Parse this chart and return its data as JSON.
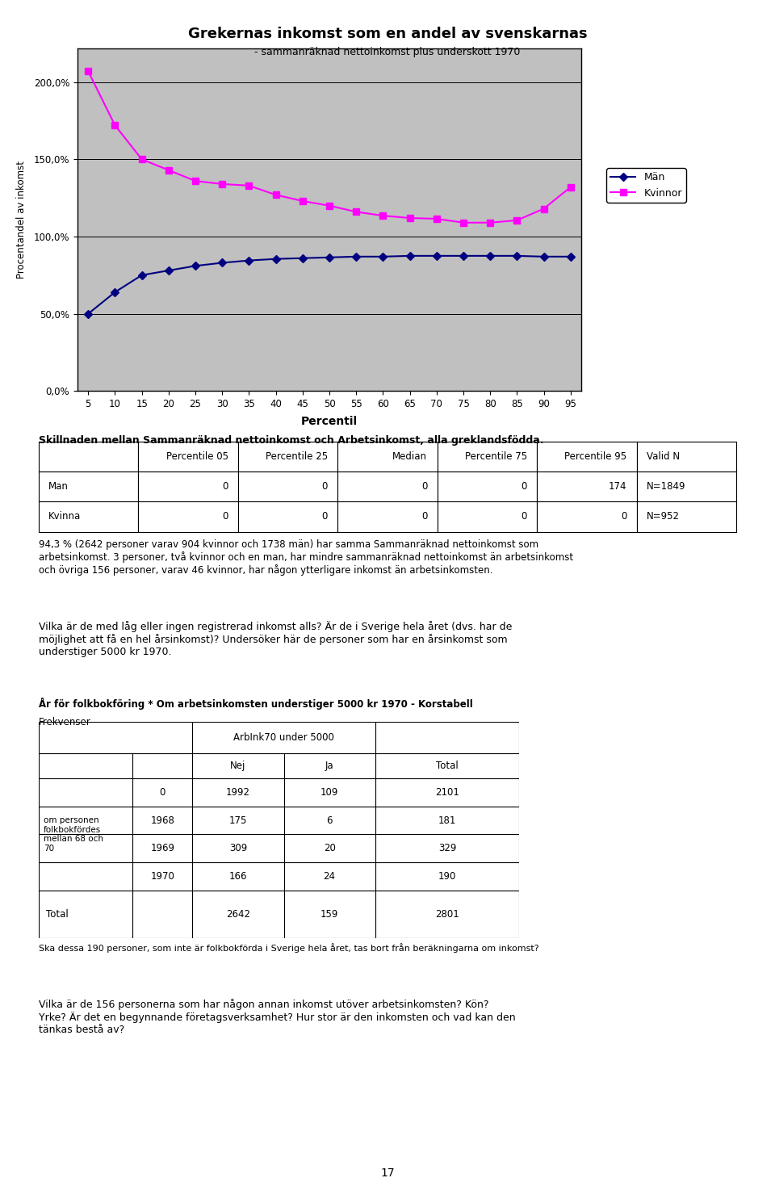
{
  "title": "Grekernas inkomst som en andel av svenskarnas",
  "subtitle": "- sammanräknad nettoinkomst plus underskott 1970",
  "xlabel": "Percentil",
  "ylabel": "Procentandel av inkomst",
  "percentiles": [
    5,
    10,
    15,
    20,
    25,
    30,
    35,
    40,
    45,
    50,
    55,
    60,
    65,
    70,
    75,
    80,
    85,
    90,
    95
  ],
  "man_values": [
    50.0,
    64.0,
    75.0,
    78.0,
    81.0,
    83.0,
    84.5,
    85.5,
    86.0,
    86.5,
    87.0,
    87.0,
    87.5,
    87.5,
    87.5,
    87.5,
    87.5,
    87.0,
    87.0
  ],
  "kvinna_values": [
    207.0,
    172.0,
    150.0,
    143.0,
    136.0,
    134.0,
    133.0,
    127.0,
    123.0,
    120.0,
    116.0,
    113.5,
    112.0,
    111.5,
    109.0,
    109.0,
    110.5,
    118.0,
    132.0
  ],
  "man_color": "#000080",
  "kvinna_color": "#FF00FF",
  "plot_bg_color": "#C0C0C0",
  "yticks": [
    0.0,
    50.0,
    100.0,
    150.0,
    200.0
  ],
  "ytick_labels": [
    "0,0%",
    "50,0%",
    "100,0%",
    "150,0%",
    "200,0%"
  ],
  "ylim": [
    0,
    222
  ],
  "legend_labels": [
    "Män",
    "Kvinnor"
  ],
  "table1_title": "Skillnaden mellan Sammanräknad nettoinkomst och Arbetsinkomst, alla greklandsfödda.",
  "table1_cols": [
    "",
    "Percentile 05",
    "Percentile 25",
    "Median",
    "Percentile 75",
    "Percentile 95",
    "Valid N"
  ],
  "table1_rows": [
    [
      "Man",
      "0",
      "0",
      "0",
      "0",
      "174",
      "N=1849"
    ],
    [
      "Kvinna",
      "0",
      "0",
      "0",
      "0",
      "0",
      "N=952"
    ]
  ],
  "table1_note": "94,3 % (2642 personer varav 904 kvinnor och 1738 män) har samma Sammanräknad nettoinkomst som\narbetsinkomst. 3 personer, två kvinnor och en man, har mindre sammanräknad nettoinkomst än arbetsinkomst\noch övriga 156 personer, varav 46 kvinnor, har någon ytterligare inkomst än arbetsinkomsten.",
  "para1": "Vilka är de med låg eller ingen registrerad inkomst alls? Är de i Sverige hela året (dvs. har de\nmöjlighet att få en hel årsinkomst)? Undersöker här de personer som har en årsinkomst som\nunderstiger 5000 kr 1970.",
  "table2_title": "År för folkbokföring * Om arbetsinkomsten understiger 5000 kr 1970 - Korstabell",
  "table2_subtitle": "Frekvenser",
  "table2_header1": "ArbInk70 under 5000",
  "table2_row_sublabels": [
    "0",
    "1968",
    "1969",
    "1970"
  ],
  "table2_data": [
    [
      "1992",
      "109",
      "2101"
    ],
    [
      "175",
      "6",
      "181"
    ],
    [
      "309",
      "20",
      "329"
    ],
    [
      "166",
      "24",
      "190"
    ]
  ],
  "table2_total": [
    "2642",
    "159",
    "2801"
  ],
  "table2_note": "Ska dessa 190 personer, som inte är folkbokförda i Sverige hela året, tas bort från beräkningarna om inkomst?",
  "para2": "Vilka är de 156 personerna som har någon annan inkomst utöver arbetsinkomsten? Kön?\nYrke? Är det en begynnande företagsverksamhet? Hur stor är den inkomsten och vad kan den\ntänkas bestå av?",
  "page_number": "17"
}
